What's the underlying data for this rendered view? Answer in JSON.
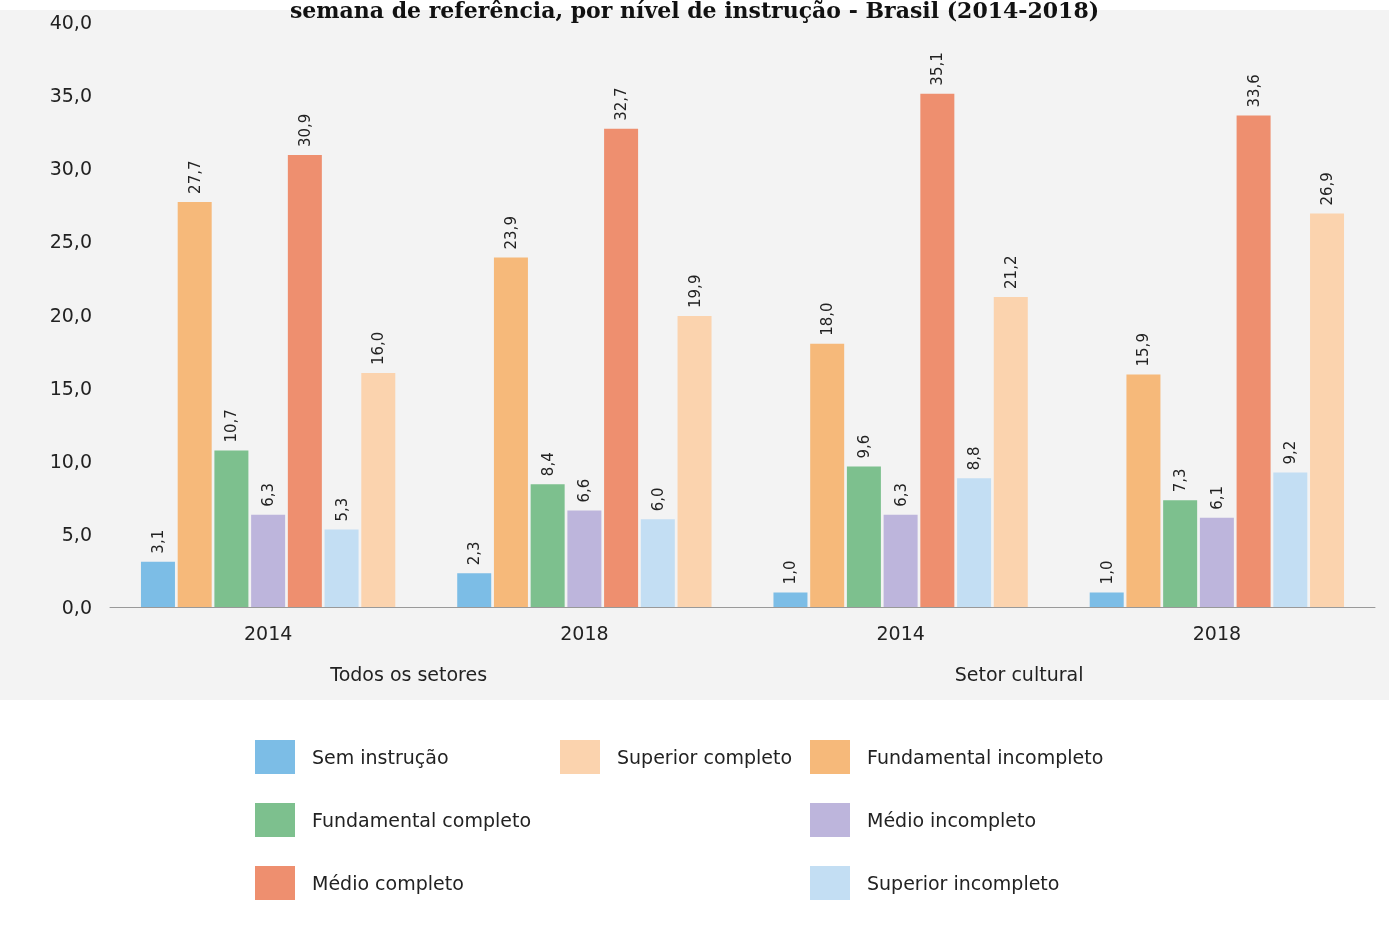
{
  "chart_data": {
    "type": "bar",
    "title": "semana de referência, por nível de instrução - Brasil (2014-2018)",
    "categories": [
      "2014",
      "2018",
      "2014",
      "2018"
    ],
    "annotations": [
      "Todos os setores",
      "Setor cultural"
    ],
    "series": [
      {
        "name": "Sem instrução",
        "color": "#7cbde6",
        "values": [
          3.1,
          2.3,
          1.0,
          1.0
        ],
        "value_labels": [
          "3,1",
          "2,3",
          "1,0",
          "1,0"
        ]
      },
      {
        "name": "Fundamental incompleto",
        "color": "#f6b97a",
        "values": [
          27.7,
          23.9,
          18.0,
          15.9
        ],
        "value_labels": [
          "27,7",
          "23,9",
          "18,0",
          "15,9"
        ]
      },
      {
        "name": "Fundamental completo",
        "color": "#7dc08e",
        "values": [
          10.7,
          8.4,
          9.6,
          7.3
        ],
        "value_labels": [
          "10,7",
          "8,4",
          "9,6",
          "7,3"
        ]
      },
      {
        "name": "Médio incompleto",
        "color": "#bdb5dc",
        "values": [
          6.3,
          6.6,
          6.3,
          6.1
        ],
        "value_labels": [
          "6,3",
          "6,6",
          "6,3",
          "6,1"
        ]
      },
      {
        "name": "Médio completo",
        "color": "#ee8f6f",
        "values": [
          30.9,
          32.7,
          35.1,
          33.6
        ],
        "value_labels": [
          "30,9",
          "32,7",
          "35,1",
          "33,6"
        ]
      },
      {
        "name": "Superior incompleto",
        "color": "#c3def3",
        "values": [
          5.3,
          6.0,
          8.8,
          9.2
        ],
        "value_labels": [
          "5,3",
          "6,0",
          "8,8",
          "9,2"
        ]
      },
      {
        "name": "Superior completo",
        "color": "#fbd3ae",
        "values": [
          16.0,
          19.9,
          21.2,
          26.9
        ],
        "value_labels": [
          "16,0",
          "19,9",
          "21,2",
          "26,9"
        ]
      }
    ],
    "ylim": [
      0,
      40
    ],
    "yticks": [
      {
        "value": 0,
        "label": "0,0"
      },
      {
        "value": 5,
        "label": "5,0"
      },
      {
        "value": 10,
        "label": "10,0"
      },
      {
        "value": 15,
        "label": "15,0"
      },
      {
        "value": 20,
        "label": "20,0"
      },
      {
        "value": 25,
        "label": "25,0"
      },
      {
        "value": 30,
        "label": "30,0"
      },
      {
        "value": 35,
        "label": "35,0"
      },
      {
        "value": 40,
        "label": "40,0"
      }
    ],
    "grid": false,
    "legend": "bottom"
  }
}
